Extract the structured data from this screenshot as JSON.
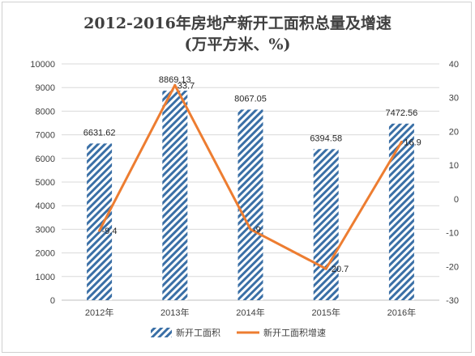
{
  "chart_data": {
    "type": "bar",
    "title": "2012-2016年房地产新开工面积总量及增速",
    "subtitle": "(万平方米、%)",
    "categories": [
      "2012年",
      "2013年",
      "2014年",
      "2015年",
      "2016年"
    ],
    "series": [
      {
        "name": "新开工面积",
        "type": "bar",
        "axis": "left",
        "values": [
          6631.62,
          8869.13,
          8067.05,
          6394.58,
          7472.56
        ],
        "labels": [
          "6631.62",
          "8869.13",
          "8067.05",
          "6394.58",
          "7472.56"
        ],
        "color": "#3a6fa6"
      },
      {
        "name": "新开工面积增速",
        "type": "line",
        "axis": "right",
        "values": [
          -9.4,
          33.7,
          -9,
          -20.7,
          16.9
        ],
        "labels": [
          "-9.4",
          "33.7",
          "-9",
          "-20.7",
          "16.9"
        ],
        "color": "#ed7d31"
      }
    ],
    "y_left": {
      "min": 0,
      "max": 10000,
      "step": 1000,
      "ticks": [
        "0",
        "1000",
        "2000",
        "3000",
        "4000",
        "5000",
        "6000",
        "7000",
        "8000",
        "9000",
        "10000"
      ]
    },
    "y_right": {
      "min": -30,
      "max": 40,
      "step": 10,
      "ticks": [
        "-30",
        "-20",
        "-10",
        "0",
        "10",
        "20",
        "30",
        "40"
      ]
    },
    "grid": true,
    "legend": "bottom"
  }
}
